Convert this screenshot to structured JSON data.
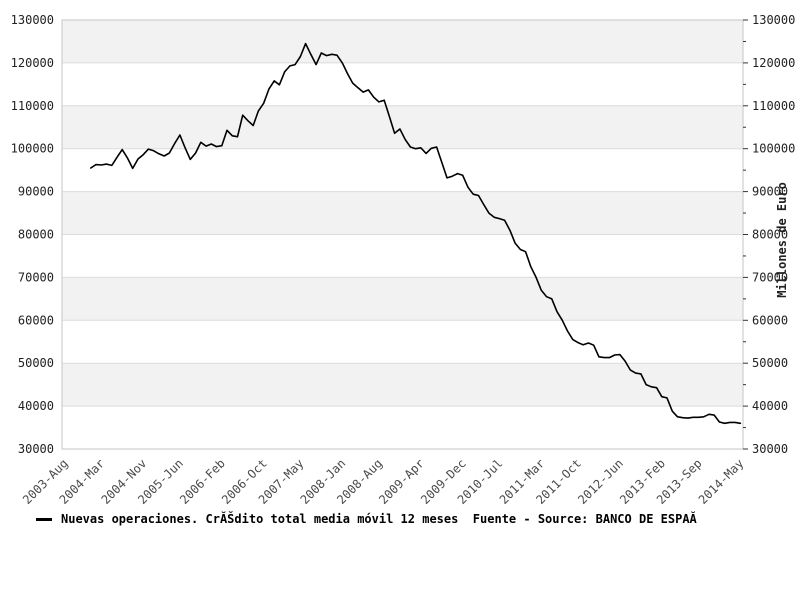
{
  "chart_data": {
    "type": "line",
    "title": "",
    "ylabel_right": "Millones de Euro",
    "ylim": [
      30000,
      130000
    ],
    "y_tick_step": 10000,
    "y_minor_tick_step": 5000,
    "y_tick_labels": [
      "130000",
      "120000",
      "110000",
      "100000",
      "90000",
      "80000",
      "70000",
      "60000",
      "50000",
      "40000",
      "30000"
    ],
    "x_tick_labels": [
      "2003-Aug",
      "2004-Mar",
      "2004-Nov",
      "2005-Jun",
      "2006-Feb",
      "2006-Oct",
      "2007-May",
      "2008-Jan",
      "2008-Aug",
      "2009-Apr",
      "2009-Dec",
      "2010-Jul",
      "2011-Mar",
      "2011-Oct",
      "2012-Jun",
      "2013-Feb",
      "2013-Sep",
      "2014-May"
    ],
    "x_tick_month_index": [
      0,
      7,
      15,
      22,
      30,
      38,
      45,
      53,
      60,
      68,
      76,
      83,
      91,
      98,
      106,
      114,
      121,
      129
    ],
    "x_total_months": 130,
    "series": [
      {
        "name": "Nuevas operaciones. CrĂŠdito total media móvil 12 meses",
        "color": "#000000",
        "start_month_index": 5,
        "start_label": "2004-Jan",
        "values": [
          95500,
          96300,
          96200,
          96400,
          96100,
          98000,
          99800,
          97800,
          95400,
          97600,
          98600,
          99900,
          99500,
          98800,
          98300,
          99000,
          101200,
          103200,
          100200,
          97500,
          99000,
          101500,
          100600,
          101100,
          100500,
          100700,
          104300,
          103000,
          102800,
          107800,
          106500,
          105400,
          108800,
          110600,
          113900,
          115800,
          114900,
          117900,
          119300,
          119600,
          121500,
          124500,
          122000,
          119600,
          122300,
          121700,
          122000,
          121800,
          120000,
          117500,
          115300,
          114200,
          113200,
          113700,
          112000,
          110900,
          111300,
          107500,
          103600,
          104600,
          102200,
          100400,
          100000,
          100200,
          98900,
          100100,
          100400,
          96800,
          93200,
          93600,
          94200,
          93800,
          91000,
          89400,
          89100,
          87000,
          85000,
          84000,
          83700,
          83300,
          81000,
          78000,
          76500,
          76000,
          72500,
          70000,
          67000,
          65500,
          65000,
          62000,
          60000,
          57500,
          55500,
          54800,
          54300,
          54700,
          54200,
          51500,
          51300,
          51300,
          51900,
          52000,
          50500,
          48400,
          47700,
          47500,
          45000,
          44500,
          44300,
          42200,
          41900,
          38800,
          37500,
          37300,
          37200,
          37400,
          37400,
          37500,
          38100,
          37900,
          36300,
          36000,
          36200,
          36200,
          36000
        ]
      }
    ],
    "legend_label": "Nuevas operaciones. CrĂŠdito total media móvil 12 meses  Fuente - Source: BANCO DE ESPAĂ",
    "legend_marker": "line",
    "grid": true,
    "legend_position": "bottom-left",
    "colors": {
      "band": "#f2f2f2",
      "grid": "#dcdcdc",
      "axis_border": "#c6c6c6",
      "tick": "#333333",
      "line": "#000000"
    }
  }
}
